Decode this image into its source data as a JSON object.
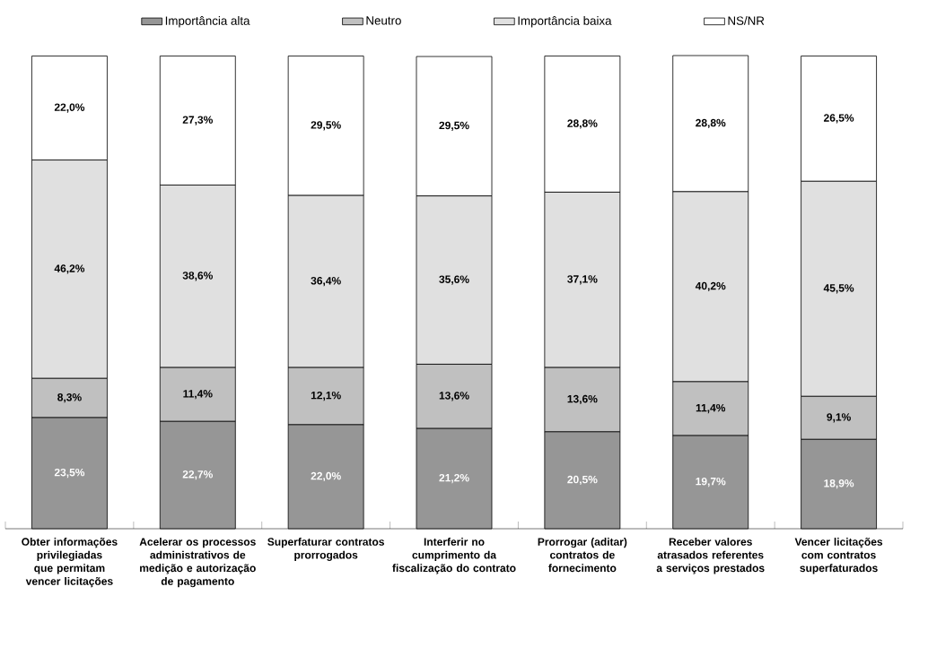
{
  "chart_data": {
    "type": "bar",
    "stacked": true,
    "legend": "top",
    "categories": [
      "Obter informações privilegiadas que permitam vencer licitações",
      "Acelerar os processos administrativos de medição e autorização de pagamento",
      "Superfaturar contratos prorrogados",
      "Interferir no cumprimento da fiscalização do contrato",
      "Prorrogar (aditar) contratos de fornecimento",
      "Receber valores atrasados referentes a serviços prestados",
      "Vencer licitações com contratos superfaturados"
    ],
    "series": [
      {
        "name": "Importância alta",
        "color": "#969696",
        "values": [
          23.5,
          22.7,
          22.0,
          21.2,
          20.5,
          19.7,
          18.9
        ],
        "value_labels": [
          "23,5%",
          "22,7%",
          "22,0%",
          "21,2%",
          "20,5%",
          "19,7%",
          "18,9%"
        ]
      },
      {
        "name": "Neutro",
        "color": "#c0c0c0",
        "values": [
          8.3,
          11.4,
          12.1,
          13.6,
          13.6,
          11.4,
          9.1
        ],
        "value_labels": [
          "8,3%",
          "11,4%",
          "12,1%",
          "13,6%",
          "13,6%",
          "11,4%",
          "9,1%"
        ]
      },
      {
        "name": "Importância baixa",
        "color": "#e0e0e0",
        "values": [
          46.2,
          38.6,
          36.4,
          35.6,
          37.1,
          40.2,
          45.5
        ],
        "value_labels": [
          "46,2%",
          "38,6%",
          "36,4%",
          "35,6%",
          "37,1%",
          "40,2%",
          "45,5%"
        ]
      },
      {
        "name": "NS/NR",
        "color": "#ffffff",
        "values": [
          22.0,
          27.3,
          29.5,
          29.5,
          28.8,
          28.8,
          26.5
        ],
        "value_labels": [
          "22,0%",
          "27,3%",
          "29,5%",
          "29,5%",
          "28,8%",
          "28,8%",
          "26,5%"
        ]
      }
    ]
  }
}
